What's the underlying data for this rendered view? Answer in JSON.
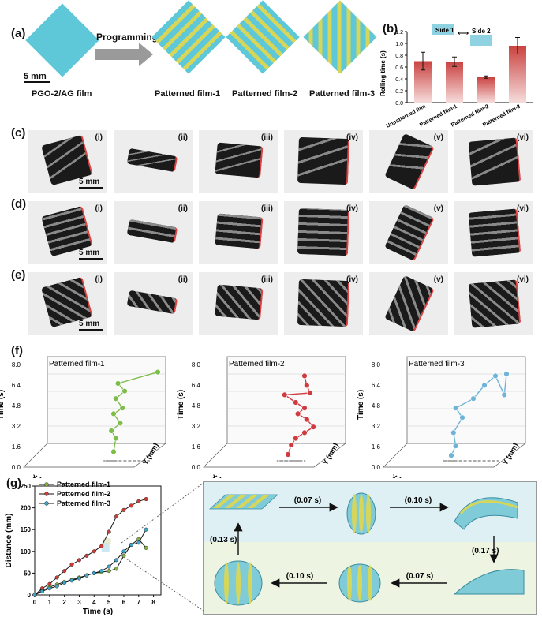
{
  "panel_a": {
    "label": "(a)",
    "scale": "5 mm",
    "film_name": "PGO-2/AG film",
    "arrow_label": "Programming",
    "films": [
      "Patterned film-1",
      "Patterned film-2",
      "Patterned film-3"
    ],
    "colors": {
      "base": "#5ec7d8",
      "stripe": "#d6d65a"
    }
  },
  "panel_b": {
    "label": "(b)",
    "legend": {
      "side1": "Side 1",
      "side2": "Side 2"
    }
  },
  "chart_data": [
    {
      "type": "bar",
      "ylabel": "Rolling time (s)",
      "categories": [
        "Unpatterned film",
        "Patterned film-1",
        "Patterned film-2",
        "Patterned film-3"
      ],
      "values": [
        0.7,
        0.69,
        0.43,
        0.96
      ],
      "errors": [
        0.15,
        0.08,
        0.02,
        0.14
      ],
      "ylim": [
        0.0,
        1.2
      ],
      "yticks": [
        "0.0",
        "0.2",
        "0.4",
        "0.6",
        "0.8",
        "1.0",
        "1.2"
      ],
      "color": "#c9423f"
    },
    {
      "type": "line",
      "xlabel": "Time (s)",
      "ylabel": "Distance (mm)",
      "xlim": [
        0,
        8.5
      ],
      "ylim": [
        0,
        250
      ],
      "xticks": [
        "0",
        "1",
        "2",
        "3",
        "4",
        "5",
        "6",
        "7",
        "8"
      ],
      "yticks": [
        "0",
        "50",
        "100",
        "150",
        "200",
        "250"
      ],
      "series": [
        {
          "name": "Patterned film-1",
          "color": "#86b33f",
          "x": [
            0,
            0.5,
            1.0,
            1.5,
            2.0,
            2.5,
            3.0,
            3.5,
            4.0,
            4.5,
            5.0,
            5.5,
            6.0,
            6.5,
            7.0,
            7.5
          ],
          "y": [
            0,
            10,
            18,
            24,
            30,
            35,
            40,
            45,
            50,
            52,
            55,
            60,
            90,
            115,
            128,
            108
          ]
        },
        {
          "name": "Patterned film-2",
          "color": "#d13b36",
          "x": [
            0,
            0.5,
            1.0,
            1.5,
            2.0,
            2.5,
            3.0,
            3.5,
            4.0,
            4.5,
            5.0,
            5.5,
            6.0,
            6.5,
            7.0,
            7.5
          ],
          "y": [
            0,
            15,
            25,
            40,
            55,
            70,
            80,
            90,
            100,
            112,
            145,
            180,
            195,
            205,
            215,
            220
          ]
        },
        {
          "name": "Patterned film-3",
          "color": "#3da5c9",
          "x": [
            0,
            0.5,
            1.0,
            1.5,
            2.0,
            2.5,
            3.0,
            3.5,
            4.0,
            4.5,
            5.0,
            5.5,
            6.0,
            6.5,
            7.0,
            7.5
          ],
          "y": [
            0,
            8,
            15,
            20,
            28,
            33,
            38,
            45,
            50,
            55,
            65,
            80,
            100,
            115,
            120,
            150
          ]
        }
      ]
    }
  ],
  "panel_c": {
    "label": "(c)",
    "scale": "5 mm"
  },
  "panel_d": {
    "label": "(d)",
    "scale": "5 mm"
  },
  "panel_e": {
    "label": "(e)",
    "scale": "5 mm"
  },
  "roman": [
    "(i)",
    "(ii)",
    "(iii)",
    "(iv)",
    "(v)",
    "(vi)"
  ],
  "panel_f": {
    "label": "(f)",
    "plots": [
      {
        "title": "Patterned film-1",
        "color": "#7fbd4b",
        "y_axis": "Y (mm)",
        "x_axis": "X (mm)",
        "z_axis": "Time (s)"
      },
      {
        "title": "Patterned film-2",
        "color": "#cf3b3f",
        "y_axis": "Y (mm)",
        "x_axis": "X (mm)",
        "z_axis": "Time (s)"
      },
      {
        "title": "Patterned film-3",
        "color": "#6fb3d6",
        "y_axis": "Y (mm)",
        "x_axis": "X (mm)",
        "z_axis": "Time (s)"
      }
    ],
    "zticks": [
      "0.0",
      "1.6",
      "3.2",
      "4.8",
      "6.4",
      "8.0"
    ]
  },
  "panel_g": {
    "label": "(g)",
    "steps": [
      "(0.07 s)",
      "(0.10 s)",
      "(0.17 s)",
      "(0.07 s)",
      "(0.10 s)",
      "(0.13 s)"
    ]
  }
}
